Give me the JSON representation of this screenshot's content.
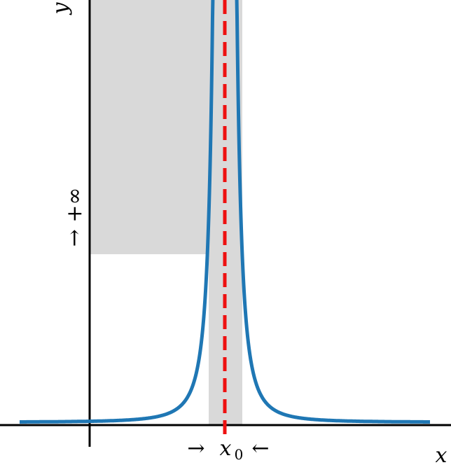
{
  "labels": {
    "y_axis": "y",
    "x_axis": "x",
    "y_limit": "→ +∞",
    "x_limit_left": "→",
    "x_limit_var": "x",
    "x_limit_sub": "0",
    "x_limit_right": "←"
  }
}
